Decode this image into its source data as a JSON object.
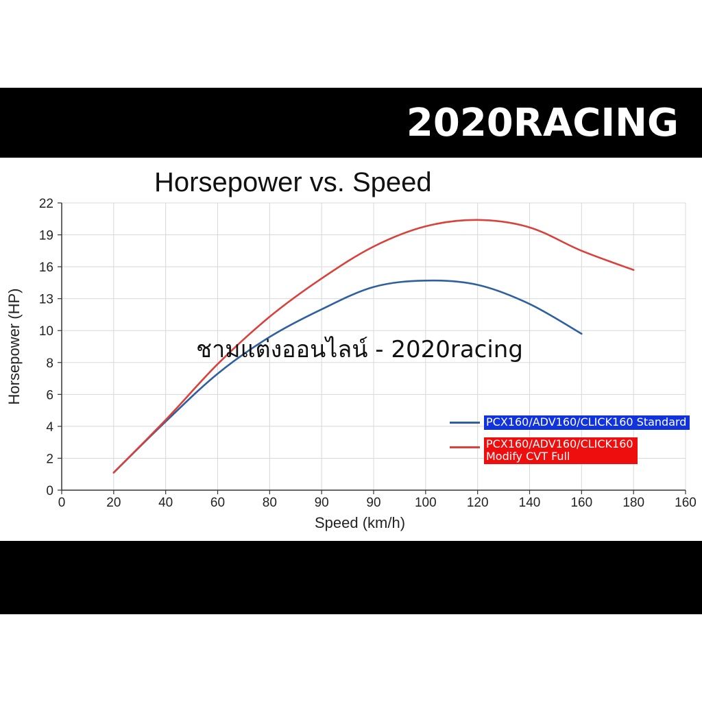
{
  "brand": "2020RACING",
  "watermark": "ชามแต่งออนไลน์ - 2020racing",
  "colors": {
    "bars": "#000000",
    "standard": "#2e5fa0",
    "modify": "#d9413a",
    "legend_standard_bg": "#1133dd",
    "legend_modify_bg": "#ee0e0e"
  },
  "chart_data": {
    "type": "line",
    "title": "Horsepower vs. Speed",
    "xlabel": "Speed (km/h)",
    "ylabel": "Horsepower (HP)",
    "x_tick_labels": [
      "0",
      "20",
      "40",
      "60",
      "80",
      "90",
      "90",
      "100",
      "120",
      "140",
      "160",
      "180",
      "160"
    ],
    "y_tick_labels": [
      "0",
      "2",
      "4",
      "6",
      "8",
      "10",
      "13",
      "16",
      "19",
      "22"
    ],
    "grid": true,
    "legend_position": "lower-right",
    "series": [
      {
        "name": "PCX160/ADV160/CLICK160 Standard",
        "x": [
          "20",
          "40",
          "60",
          "80",
          "90",
          "90",
          "100",
          "120",
          "140",
          "160"
        ],
        "y": [
          1.1,
          4.3,
          7.3,
          9.6,
          12.0,
          14.1,
          14.7,
          14.3,
          12.5,
          9.8
        ]
      },
      {
        "name": "PCX160/ADV160/CLICK160\nModify CVT Full",
        "x": [
          "20",
          "40",
          "60",
          "80",
          "90",
          "90",
          "100",
          "120",
          "140",
          "160",
          "180"
        ],
        "y": [
          1.1,
          4.4,
          7.9,
          11.3,
          14.9,
          17.9,
          19.8,
          20.4,
          19.7,
          17.5,
          15.7
        ]
      }
    ]
  }
}
